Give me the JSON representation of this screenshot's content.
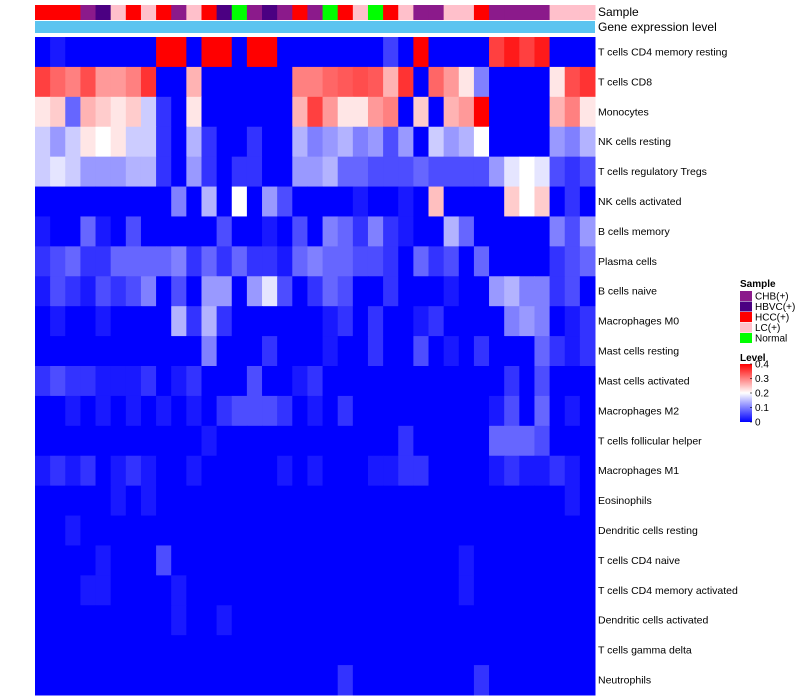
{
  "chart_data": {
    "type": "heatmap",
    "annotation_titles": {
      "sample": "Sample",
      "expression": "Gene expression level"
    },
    "rows": [
      "T cells CD4 memory resting",
      "T cells CD8",
      "Monocytes",
      "NK cells resting",
      "T cells regulatory  Tregs",
      "NK cells activated",
      "B cells memory",
      "Plasma cells",
      "B cells naive",
      "Macrophages M0",
      "Mast cells resting",
      "Mast cells activated",
      "Macrophages M2",
      "T cells follicular helper",
      "Macrophages M1",
      "Eosinophils",
      "Dendritic cells resting",
      "T cells CD4 naive",
      "T cells CD4 memory activated",
      "Dendritic cells activated",
      "T cells gamma delta",
      "Neutrophils"
    ],
    "sample_annotation": [
      "HCC(+)",
      "HCC(+)",
      "HCC(+)",
      "CHB(+)",
      "HBVC(+)",
      "LC(+)",
      "HCC(+)",
      "LC(+)",
      "HCC(+)",
      "CHB(+)",
      "LC(+)",
      "HCC(+)",
      "HBVC(+)",
      "Normal",
      "CHB(+)",
      "HBVC(+)",
      "CHB(+)",
      "HCC(+)",
      "CHB(+)",
      "Normal",
      "HCC(+)",
      "LC(+)",
      "Normal",
      "HCC(+)",
      "LC(+)",
      "CHB(+)",
      "CHB(+)",
      "LC(+)",
      "LC(+)",
      "HCC(+)",
      "CHB(+)",
      "CHB(+)",
      "CHB(+)",
      "CHB(+)",
      "LC(+)",
      "LC(+)",
      "LC(+)"
    ],
    "matrix": [
      [
        0.0,
        0.02,
        0.0,
        0.0,
        0.0,
        0.0,
        0.0,
        0.0,
        0.4,
        0.4,
        0.0,
        0.4,
        0.4,
        0.0,
        0.4,
        0.4,
        0.0,
        0.0,
        0.0,
        0.0,
        0.0,
        0.0,
        0.0,
        0.05,
        0.0,
        0.4,
        0.0,
        0.0,
        0.0,
        0.0,
        0.35,
        0.38,
        0.35,
        0.38,
        0.0,
        0.0,
        0.0
      ],
      [
        0.35,
        0.32,
        0.3,
        0.34,
        0.28,
        0.28,
        0.3,
        0.36,
        0.0,
        0.0,
        0.26,
        0.0,
        0.0,
        0.0,
        0.0,
        0.0,
        0.0,
        0.3,
        0.3,
        0.32,
        0.33,
        0.34,
        0.33,
        0.26,
        0.36,
        0.0,
        0.32,
        0.28,
        0.22,
        0.1,
        0.0,
        0.0,
        0.0,
        0.0,
        0.22,
        0.34,
        0.36
      ],
      [
        0.22,
        0.24,
        0.08,
        0.26,
        0.24,
        0.22,
        0.24,
        0.16,
        0.04,
        0.0,
        0.22,
        0.0,
        0.0,
        0.0,
        0.0,
        0.0,
        0.0,
        0.26,
        0.35,
        0.28,
        0.22,
        0.22,
        0.28,
        0.3,
        0.0,
        0.24,
        0.0,
        0.26,
        0.28,
        0.4,
        0.0,
        0.0,
        0.0,
        0.0,
        0.26,
        0.3,
        0.22
      ],
      [
        0.16,
        0.12,
        0.16,
        0.22,
        0.2,
        0.22,
        0.16,
        0.16,
        0.04,
        0.0,
        0.14,
        0.04,
        0.0,
        0.0,
        0.04,
        0.0,
        0.0,
        0.14,
        0.1,
        0.12,
        0.14,
        0.1,
        0.12,
        0.06,
        0.12,
        0.0,
        0.16,
        0.12,
        0.14,
        0.2,
        0.0,
        0.0,
        0.0,
        0.0,
        0.12,
        0.1,
        0.14
      ],
      [
        0.16,
        0.18,
        0.16,
        0.12,
        0.12,
        0.12,
        0.14,
        0.14,
        0.04,
        0.0,
        0.12,
        0.04,
        0.0,
        0.04,
        0.04,
        0.0,
        0.0,
        0.12,
        0.12,
        0.14,
        0.08,
        0.08,
        0.06,
        0.06,
        0.06,
        0.08,
        0.06,
        0.06,
        0.06,
        0.06,
        0.12,
        0.18,
        0.2,
        0.18,
        0.06,
        0.04,
        0.06
      ],
      [
        0.0,
        0.0,
        0.0,
        0.0,
        0.0,
        0.0,
        0.0,
        0.0,
        0.0,
        0.1,
        0.0,
        0.14,
        0.0,
        0.2,
        0.0,
        0.12,
        0.06,
        0.0,
        0.0,
        0.0,
        0.0,
        0.02,
        0.0,
        0.0,
        0.02,
        0.0,
        0.25,
        0.0,
        0.0,
        0.0,
        0.0,
        0.24,
        0.2,
        0.24,
        0.0,
        0.04,
        0.0
      ],
      [
        0.02,
        0.0,
        0.0,
        0.08,
        0.02,
        0.0,
        0.06,
        0.0,
        0.0,
        0.0,
        0.0,
        0.0,
        0.06,
        0.0,
        0.0,
        0.02,
        0.0,
        0.06,
        0.0,
        0.1,
        0.08,
        0.04,
        0.1,
        0.04,
        0.02,
        0.0,
        0.0,
        0.14,
        0.08,
        0.0,
        0.0,
        0.0,
        0.0,
        0.0,
        0.1,
        0.06,
        0.12
      ],
      [
        0.04,
        0.06,
        0.08,
        0.04,
        0.04,
        0.08,
        0.08,
        0.08,
        0.08,
        0.1,
        0.04,
        0.08,
        0.04,
        0.08,
        0.04,
        0.04,
        0.02,
        0.08,
        0.1,
        0.08,
        0.08,
        0.06,
        0.06,
        0.04,
        0.0,
        0.08,
        0.04,
        0.06,
        0.0,
        0.08,
        0.0,
        0.0,
        0.0,
        0.0,
        0.04,
        0.06,
        0.08
      ],
      [
        0.02,
        0.06,
        0.04,
        0.02,
        0.06,
        0.04,
        0.06,
        0.1,
        0.0,
        0.06,
        0.0,
        0.12,
        0.12,
        0.0,
        0.12,
        0.18,
        0.06,
        0.0,
        0.04,
        0.08,
        0.06,
        0.0,
        0.0,
        0.04,
        0.0,
        0.0,
        0.0,
        0.02,
        0.0,
        0.0,
        0.12,
        0.14,
        0.1,
        0.1,
        0.04,
        0.06,
        0.0
      ],
      [
        0.0,
        0.02,
        0.0,
        0.0,
        0.02,
        0.0,
        0.0,
        0.0,
        0.0,
        0.14,
        0.04,
        0.14,
        0.04,
        0.0,
        0.0,
        0.0,
        0.0,
        0.0,
        0.0,
        0.02,
        0.04,
        0.0,
        0.04,
        0.0,
        0.0,
        0.02,
        0.04,
        0.0,
        0.0,
        0.0,
        0.0,
        0.1,
        0.12,
        0.1,
        0.0,
        0.02,
        0.04
      ],
      [
        0.0,
        0.0,
        0.0,
        0.0,
        0.0,
        0.0,
        0.0,
        0.0,
        0.0,
        0.0,
        0.0,
        0.1,
        0.0,
        0.0,
        0.0,
        0.04,
        0.0,
        0.0,
        0.0,
        0.02,
        0.0,
        0.0,
        0.04,
        0.0,
        0.0,
        0.06,
        0.0,
        0.02,
        0.0,
        0.04,
        0.0,
        0.0,
        0.0,
        0.08,
        0.04,
        0.02,
        0.04
      ],
      [
        0.04,
        0.06,
        0.04,
        0.04,
        0.02,
        0.02,
        0.02,
        0.04,
        0.0,
        0.02,
        0.04,
        0.0,
        0.0,
        0.0,
        0.06,
        0.0,
        0.0,
        0.02,
        0.04,
        0.0,
        0.0,
        0.0,
        0.0,
        0.0,
        0.0,
        0.0,
        0.0,
        0.0,
        0.0,
        0.0,
        0.0,
        0.04,
        0.0,
        0.06,
        0.0,
        0.0,
        0.0
      ],
      [
        0.0,
        0.0,
        0.02,
        0.0,
        0.02,
        0.0,
        0.02,
        0.0,
        0.02,
        0.0,
        0.02,
        0.0,
        0.04,
        0.06,
        0.06,
        0.06,
        0.04,
        0.0,
        0.02,
        0.0,
        0.04,
        0.0,
        0.0,
        0.0,
        0.0,
        0.0,
        0.0,
        0.0,
        0.0,
        0.0,
        0.02,
        0.06,
        0.0,
        0.08,
        0.0,
        0.02,
        0.0
      ],
      [
        0.0,
        0.0,
        0.0,
        0.0,
        0.0,
        0.0,
        0.0,
        0.0,
        0.0,
        0.0,
        0.0,
        0.02,
        0.0,
        0.0,
        0.0,
        0.0,
        0.0,
        0.0,
        0.0,
        0.0,
        0.0,
        0.0,
        0.0,
        0.0,
        0.04,
        0.0,
        0.0,
        0.0,
        0.0,
        0.0,
        0.08,
        0.08,
        0.08,
        0.06,
        0.0,
        0.0,
        0.0
      ],
      [
        0.02,
        0.04,
        0.02,
        0.04,
        0.0,
        0.02,
        0.04,
        0.02,
        0.0,
        0.0,
        0.02,
        0.0,
        0.0,
        0.0,
        0.0,
        0.0,
        0.02,
        0.0,
        0.02,
        0.0,
        0.0,
        0.0,
        0.02,
        0.02,
        0.04,
        0.04,
        0.0,
        0.0,
        0.0,
        0.0,
        0.02,
        0.04,
        0.02,
        0.02,
        0.04,
        0.02,
        0.0
      ],
      [
        0.0,
        0.0,
        0.0,
        0.0,
        0.0,
        0.02,
        0.0,
        0.02,
        0.0,
        0.0,
        0.0,
        0.0,
        0.0,
        0.0,
        0.0,
        0.0,
        0.0,
        0.0,
        0.0,
        0.0,
        0.0,
        0.0,
        0.0,
        0.0,
        0.0,
        0.0,
        0.0,
        0.0,
        0.0,
        0.0,
        0.0,
        0.0,
        0.0,
        0.0,
        0.0,
        0.02,
        0.0
      ],
      [
        0.0,
        0.0,
        0.02,
        0.0,
        0.0,
        0.0,
        0.0,
        0.0,
        0.0,
        0.0,
        0.0,
        0.0,
        0.0,
        0.0,
        0.0,
        0.0,
        0.0,
        0.0,
        0.0,
        0.0,
        0.0,
        0.0,
        0.0,
        0.0,
        0.0,
        0.0,
        0.0,
        0.0,
        0.0,
        0.0,
        0.0,
        0.0,
        0.0,
        0.0,
        0.0,
        0.0,
        0.0
      ],
      [
        0.0,
        0.0,
        0.0,
        0.0,
        0.02,
        0.0,
        0.0,
        0.0,
        0.06,
        0.0,
        0.0,
        0.0,
        0.0,
        0.0,
        0.0,
        0.0,
        0.0,
        0.0,
        0.0,
        0.0,
        0.0,
        0.0,
        0.0,
        0.0,
        0.0,
        0.0,
        0.0,
        0.0,
        0.02,
        0.0,
        0.0,
        0.0,
        0.0,
        0.0,
        0.0,
        0.0,
        0.0
      ],
      [
        0.0,
        0.0,
        0.0,
        0.02,
        0.02,
        0.0,
        0.0,
        0.0,
        0.0,
        0.02,
        0.0,
        0.0,
        0.0,
        0.0,
        0.0,
        0.0,
        0.0,
        0.0,
        0.0,
        0.0,
        0.0,
        0.0,
        0.0,
        0.0,
        0.0,
        0.0,
        0.0,
        0.0,
        0.02,
        0.0,
        0.0,
        0.0,
        0.0,
        0.0,
        0.0,
        0.0,
        0.0
      ],
      [
        0.0,
        0.0,
        0.0,
        0.0,
        0.0,
        0.0,
        0.0,
        0.0,
        0.0,
        0.02,
        0.0,
        0.0,
        0.02,
        0.0,
        0.0,
        0.0,
        0.0,
        0.0,
        0.0,
        0.0,
        0.0,
        0.0,
        0.0,
        0.0,
        0.0,
        0.0,
        0.0,
        0.0,
        0.0,
        0.0,
        0.0,
        0.0,
        0.0,
        0.0,
        0.0,
        0.0,
        0.0
      ],
      [
        0.0,
        0.0,
        0.0,
        0.0,
        0.0,
        0.0,
        0.0,
        0.0,
        0.0,
        0.0,
        0.0,
        0.0,
        0.0,
        0.0,
        0.0,
        0.0,
        0.0,
        0.0,
        0.0,
        0.0,
        0.0,
        0.0,
        0.0,
        0.0,
        0.0,
        0.0,
        0.0,
        0.0,
        0.0,
        0.0,
        0.0,
        0.0,
        0.0,
        0.0,
        0.0,
        0.0,
        0.0
      ],
      [
        0.0,
        0.0,
        0.0,
        0.0,
        0.0,
        0.0,
        0.0,
        0.0,
        0.0,
        0.0,
        0.0,
        0.0,
        0.0,
        0.0,
        0.0,
        0.0,
        0.0,
        0.0,
        0.0,
        0.0,
        0.04,
        0.0,
        0.0,
        0.0,
        0.0,
        0.0,
        0.0,
        0.0,
        0.0,
        0.04,
        0.0,
        0.0,
        0.0,
        0.0,
        0.0,
        0.0,
        0.0
      ]
    ],
    "value_range": [
      0,
      0.4
    ],
    "color_scale": [
      "#0000ff",
      "#ffffff",
      "#ff0000"
    ],
    "expression_bar_color": "#5bc4f0",
    "legend": {
      "sample": {
        "title": "Sample",
        "entries": [
          {
            "label": "CHB(+)",
            "color": "#8b1a8b"
          },
          {
            "label": "HBVC(+)",
            "color": "#4b0082"
          },
          {
            "label": "HCC(+)",
            "color": "#ff0000"
          },
          {
            "label": "LC(+)",
            "color": "#ffc0cb"
          },
          {
            "label": "Normal",
            "color": "#00ff00"
          }
        ]
      },
      "level": {
        "title": "Level",
        "ticks": [
          {
            "label": "0.4",
            "value": 0.4
          },
          {
            "label": "0.3",
            "value": 0.3
          },
          {
            "label": "0.2",
            "value": 0.2
          },
          {
            "label": "0.1",
            "value": 0.1
          },
          {
            "label": "0",
            "value": 0
          }
        ]
      }
    },
    "legend_position": "right",
    "row_dendrogram": true
  }
}
